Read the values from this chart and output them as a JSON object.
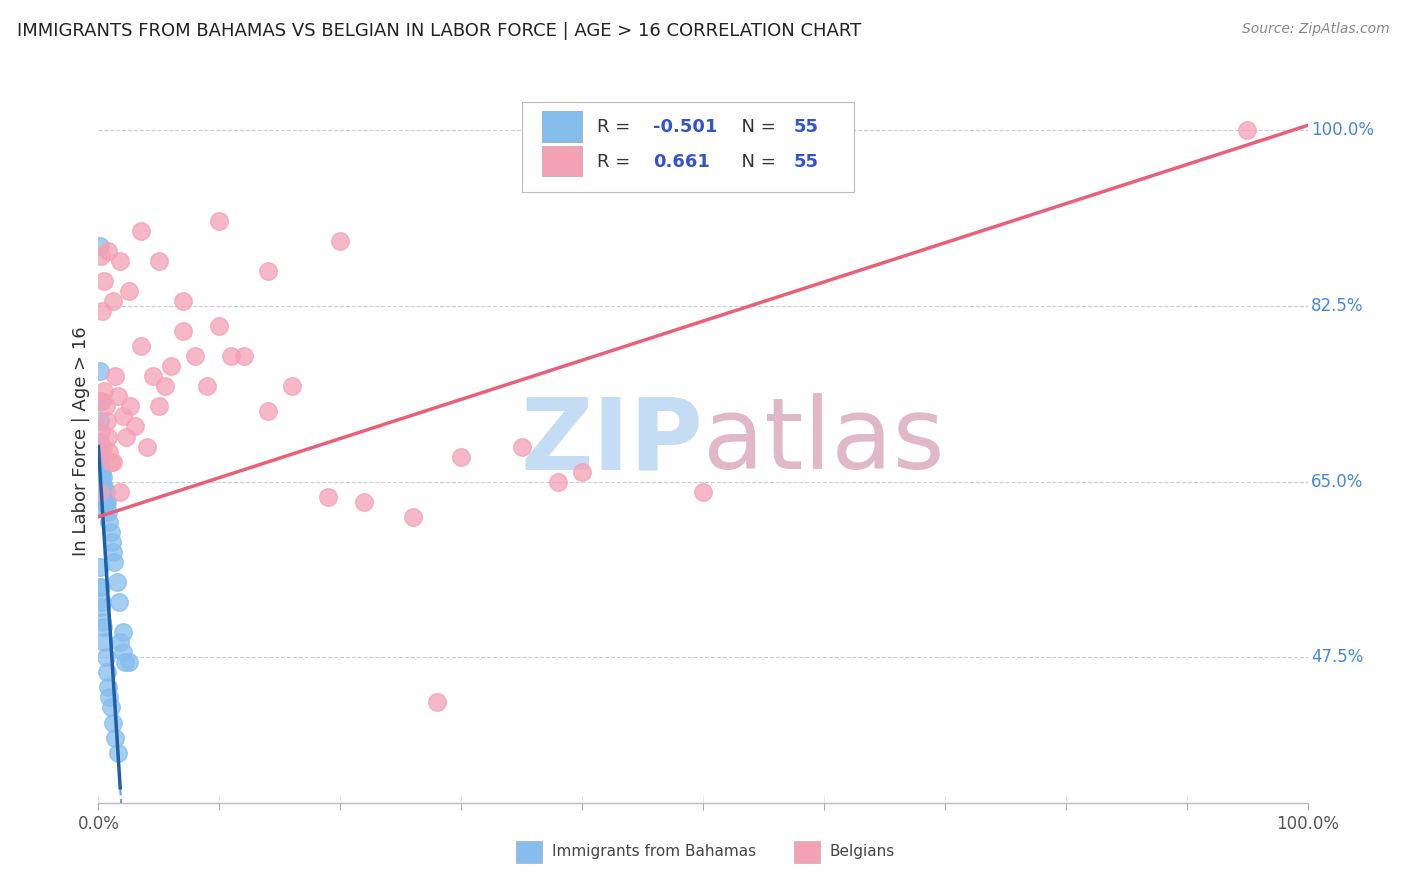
{
  "title": "IMMIGRANTS FROM BAHAMAS VS BELGIAN IN LABOR FORCE | AGE > 16 CORRELATION CHART",
  "source": "Source: ZipAtlas.com",
  "ylabel": "In Labor Force | Age > 16",
  "xlim": [
    0.0,
    1.0
  ],
  "ylim": [
    0.33,
    1.05
  ],
  "ytick_positions": [
    0.475,
    0.65,
    0.825,
    1.0
  ],
  "ytick_labels": [
    "47.5%",
    "65.0%",
    "82.5%",
    "100.0%"
  ],
  "r_bahamas": -0.501,
  "n_bahamas": 55,
  "r_belgian": 0.661,
  "n_belgian": 55,
  "color_bahamas": "#85BDED",
  "color_belgian": "#F4A0B5",
  "color_line_bahamas": "#1E5FA8",
  "color_line_belgian": "#E8607A",
  "legend_label_bahamas": "Immigrants from Bahamas",
  "legend_label_belgian": "Belgians",
  "watermark_zip_color": "#C5DCF5",
  "watermark_atlas_color": "#E0B8C8",
  "bah_line_x0": 0.0,
  "bah_line_y0": 0.685,
  "bah_line_x1": 0.018,
  "bah_line_y1": 0.345,
  "bel_line_x0": 0.0,
  "bel_line_y0": 0.615,
  "bel_line_x1": 1.0,
  "bel_line_y1": 1.005,
  "bah_scatter_x": [
    0.001,
    0.001,
    0.001,
    0.001,
    0.001,
    0.001,
    0.001,
    0.001,
    0.002,
    0.002,
    0.002,
    0.002,
    0.002,
    0.002,
    0.003,
    0.003,
    0.003,
    0.003,
    0.004,
    0.004,
    0.004,
    0.005,
    0.005,
    0.006,
    0.006,
    0.007,
    0.008,
    0.009,
    0.01,
    0.011,
    0.012,
    0.013,
    0.015,
    0.017,
    0.02,
    0.025,
    0.001,
    0.001,
    0.002,
    0.002,
    0.003,
    0.003,
    0.004,
    0.005,
    0.006,
    0.007,
    0.008,
    0.009,
    0.01,
    0.012,
    0.014,
    0.016,
    0.018,
    0.02,
    0.022
  ],
  "bah_scatter_y": [
    0.885,
    0.76,
    0.73,
    0.71,
    0.69,
    0.67,
    0.66,
    0.65,
    0.68,
    0.665,
    0.655,
    0.645,
    0.635,
    0.625,
    0.66,
    0.65,
    0.64,
    0.63,
    0.655,
    0.645,
    0.635,
    0.645,
    0.635,
    0.64,
    0.63,
    0.63,
    0.62,
    0.61,
    0.6,
    0.59,
    0.58,
    0.57,
    0.55,
    0.53,
    0.5,
    0.47,
    0.565,
    0.545,
    0.545,
    0.525,
    0.53,
    0.51,
    0.505,
    0.49,
    0.475,
    0.46,
    0.445,
    0.435,
    0.425,
    0.41,
    0.395,
    0.38,
    0.49,
    0.48,
    0.47
  ],
  "bel_scatter_x": [
    0.001,
    0.002,
    0.003,
    0.004,
    0.005,
    0.006,
    0.007,
    0.008,
    0.009,
    0.01,
    0.012,
    0.014,
    0.016,
    0.018,
    0.02,
    0.023,
    0.026,
    0.03,
    0.035,
    0.04,
    0.045,
    0.05,
    0.055,
    0.06,
    0.07,
    0.08,
    0.09,
    0.1,
    0.11,
    0.12,
    0.14,
    0.16,
    0.19,
    0.22,
    0.26,
    0.3,
    0.35,
    0.4,
    0.5,
    0.002,
    0.003,
    0.005,
    0.008,
    0.012,
    0.018,
    0.025,
    0.035,
    0.05,
    0.07,
    0.1,
    0.14,
    0.2,
    0.28,
    0.38,
    0.95
  ],
  "bel_scatter_y": [
    0.64,
    0.7,
    0.73,
    0.685,
    0.74,
    0.725,
    0.71,
    0.695,
    0.68,
    0.67,
    0.67,
    0.755,
    0.735,
    0.64,
    0.715,
    0.695,
    0.725,
    0.705,
    0.785,
    0.685,
    0.755,
    0.725,
    0.745,
    0.765,
    0.8,
    0.775,
    0.745,
    0.805,
    0.775,
    0.775,
    0.72,
    0.745,
    0.635,
    0.63,
    0.615,
    0.675,
    0.685,
    0.66,
    0.64,
    0.875,
    0.82,
    0.85,
    0.88,
    0.83,
    0.87,
    0.84,
    0.9,
    0.87,
    0.83,
    0.91,
    0.86,
    0.89,
    0.43,
    0.65,
    1.0
  ]
}
